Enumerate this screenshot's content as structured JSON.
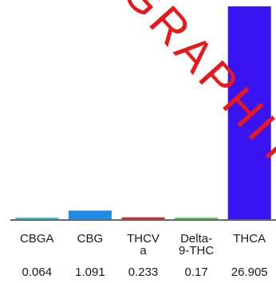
{
  "chart_data": {
    "type": "bar",
    "categories": [
      "CBGA",
      "CBG",
      "THCV\na",
      "Delta-\n9-THC",
      "THCA"
    ],
    "values": [
      0.064,
      1.091,
      0.233,
      0.17,
      26.905
    ],
    "value_labels": [
      "0.064",
      "1.091",
      "0.233",
      "0.17",
      "26.905"
    ],
    "colors": [
      "#1ec8e6",
      "#1e8ce6",
      "#dc1e1e",
      "#46d646",
      "#3a14f0"
    ],
    "ylim": [
      0,
      26.905
    ],
    "title": "",
    "xlabel": "",
    "ylabel": "",
    "grid": false,
    "legend": "none"
  },
  "watermark": {
    "text": "GRAPHITE",
    "color": "#e8191c"
  }
}
